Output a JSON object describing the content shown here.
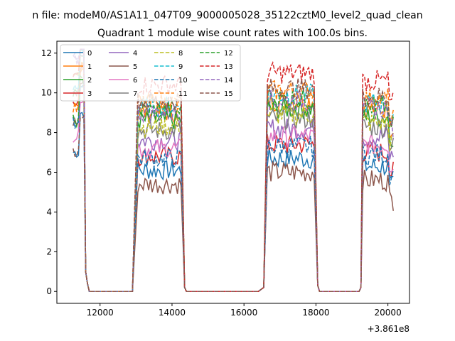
{
  "header": {
    "suptitle": "n file: modeM0/AS1A11_047T09_9000005028_35122cztM0_level2_quad_clean",
    "title": "Quadrant 1 module wise count rates with 100.0s bins."
  },
  "chart_data": {
    "type": "line",
    "xlim": [
      10800,
      20600
    ],
    "ylim": [
      -0.6,
      12.6
    ],
    "x_offset_label": "+3.861e8",
    "x_ticks": [
      12000,
      14000,
      16000,
      18000,
      20000
    ],
    "x_tick_labels": [
      "12000",
      "14000",
      "16000",
      "18000",
      "20000"
    ],
    "y_ticks": [
      0,
      2,
      4,
      6,
      8,
      10,
      12
    ],
    "y_tick_labels": [
      "0",
      "2",
      "4",
      "6",
      "8",
      "10",
      "12"
    ],
    "legend": {
      "placement": "top-left",
      "ncol": 4
    },
    "grid": false,
    "segments": [
      {
        "x_start": 11250,
        "x_end": 11550,
        "base": 11.8,
        "noise": 0.3
      },
      {
        "x_start": 13050,
        "x_end": 14250,
        "base": 1.0,
        "noise": 0.5
      },
      {
        "x_start": 16650,
        "x_end": 17950,
        "base": 1.0,
        "noise": 0.55
      },
      {
        "x_start": 19300,
        "x_end": 20150,
        "base": 1.0,
        "noise": 0.55
      }
    ],
    "zero_runs": [
      {
        "x_start": 11700,
        "x_end": 12950
      },
      {
        "x_start": 14400,
        "x_end": 16450
      },
      {
        "x_start": 18100,
        "x_end": 19200
      }
    ],
    "series": [
      {
        "name": "0",
        "color": "#1f77b4",
        "dash": "solid",
        "level": 6.1
      },
      {
        "name": "1",
        "color": "#ff7f0e",
        "dash": "solid",
        "level": 9.0
      },
      {
        "name": "2",
        "color": "#2ca02c",
        "dash": "solid",
        "level": 8.6
      },
      {
        "name": "3",
        "color": "#d62728",
        "dash": "solid",
        "level": 6.8
      },
      {
        "name": "4",
        "color": "#9467bd",
        "dash": "solid",
        "level": 7.6
      },
      {
        "name": "5",
        "color": "#8c564b",
        "dash": "solid",
        "level": 5.4
      },
      {
        "name": "6",
        "color": "#e377c2",
        "dash": "solid",
        "level": 7.2
      },
      {
        "name": "7",
        "color": "#7f7f7f",
        "dash": "solid",
        "level": 8.1
      },
      {
        "name": "8",
        "color": "#bcbd22",
        "dash": "dashed",
        "level": 8.3
      },
      {
        "name": "9",
        "color": "#17becf",
        "dash": "dashed",
        "level": 9.3
      },
      {
        "name": "10",
        "color": "#1f77b4",
        "dash": "dashed",
        "level": 6.7
      },
      {
        "name": "11",
        "color": "#ff7f0e",
        "dash": "dashed",
        "level": 9.5
      },
      {
        "name": "12",
        "color": "#2ca02c",
        "dash": "dashed",
        "level": 9.1
      },
      {
        "name": "13",
        "color": "#d62728",
        "dash": "dashed",
        "level": 10.4
      },
      {
        "name": "14",
        "color": "#9467bd",
        "dash": "dashed",
        "level": 9.0
      },
      {
        "name": "15",
        "color": "#8c564b",
        "dash": "dashed",
        "level": 9.6
      }
    ]
  }
}
